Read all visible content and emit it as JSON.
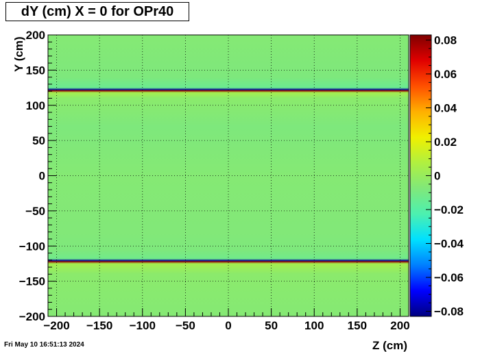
{
  "chart_data": {
    "type": "heatmap",
    "title": "dY (cm) X = 0 for OPr40",
    "xlabel": "Z (cm)",
    "ylabel": "Y (cm)",
    "xlim": [
      -210,
      210
    ],
    "ylim": [
      -200,
      200
    ],
    "x_ticks": [
      -200,
      -150,
      -100,
      -50,
      0,
      50,
      100,
      150,
      200
    ],
    "x_tick_labels": [
      "−200",
      "−150",
      "−100",
      "−50",
      "0",
      "50",
      "100",
      "150",
      "200"
    ],
    "y_ticks": [
      -200,
      -150,
      -100,
      -50,
      0,
      50,
      100,
      150,
      200
    ],
    "y_tick_labels": [
      "−200",
      "−150",
      "−100",
      "−50",
      "0",
      "50",
      "100",
      "150",
      "200"
    ],
    "grid": true,
    "colorbar": {
      "range": [
        -0.083,
        0.083
      ],
      "ticks": [
        0.08,
        0.06,
        0.04,
        0.02,
        0,
        -0.02,
        -0.04,
        -0.06,
        -0.08
      ],
      "tick_labels": [
        "0.08",
        "0.06",
        "0.04",
        "0.02",
        "0",
        "−0.02",
        "−0.04",
        "−0.06",
        "−0.08"
      ],
      "palette": [
        "#00007f",
        "#0000ff",
        "#007fff",
        "#00e0ff",
        "#4cf0b0",
        "#80e87a",
        "#b0f040",
        "#f0f000",
        "#ffb000",
        "#ff5000",
        "#e00000",
        "#7f0000"
      ]
    },
    "background_value": -0.006,
    "y_profile": [
      {
        "y": -200,
        "value": -0.006
      },
      {
        "y": -140,
        "value": -0.004
      },
      {
        "y": -125,
        "value": 0.004
      },
      {
        "y": -122,
        "value": 0.08
      },
      {
        "y": -121,
        "value": -0.08
      },
      {
        "y": -118,
        "value": -0.012
      },
      {
        "y": -105,
        "value": -0.008
      },
      {
        "y": -80,
        "value": -0.007
      },
      {
        "y": 0,
        "value": -0.006
      },
      {
        "y": 70,
        "value": -0.008
      },
      {
        "y": 110,
        "value": -0.004
      },
      {
        "y": 118,
        "value": 0.004
      },
      {
        "y": 121,
        "value": 0.08
      },
      {
        "y": 122,
        "value": -0.08
      },
      {
        "y": 125,
        "value": -0.014
      },
      {
        "y": 140,
        "value": -0.008
      },
      {
        "y": 200,
        "value": -0.006
      }
    ]
  },
  "timestamp": "Fri May 10 16:51:13 2024"
}
